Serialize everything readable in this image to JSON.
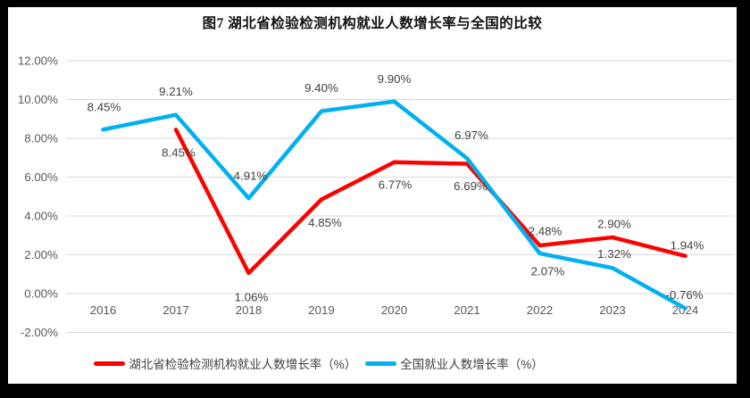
{
  "frame": {
    "border_color": "#000000",
    "panel_background": "#ffffff"
  },
  "chart_data": {
    "type": "line",
    "title": "图7 湖北省检验检测机构就业人数增长率与全国的比较",
    "categories": [
      "2016",
      "2017",
      "2018",
      "2019",
      "2020",
      "2021",
      "2022",
      "2023",
      "2024"
    ],
    "ytick_labels": [
      "12.00%",
      "10.00%",
      "8.00%",
      "6.00%",
      "4.00%",
      "2.00%",
      "0.00%",
      "-2.00%"
    ],
    "ylim": [
      -2,
      12
    ],
    "ytick_step": 2,
    "grid": true,
    "legend_position": "bottom",
    "gridline_color": "#d9d9d9",
    "axis_label_color": "#595959",
    "data_label_color": "#404040",
    "series": [
      {
        "name": "湖北省检验检测机构就业人数增长率（%）",
        "color": "#ff0000",
        "values": [
          null,
          8.45,
          1.06,
          4.85,
          6.77,
          6.69,
          2.48,
          2.9,
          1.94
        ],
        "data_labels": [
          "",
          "8.45%",
          "1.06%",
          "4.85%",
          "6.77%",
          "6.69%",
          "2.48%",
          "2.90%",
          "1.94%"
        ],
        "label_dx": [
          0,
          3,
          3,
          4,
          1,
          4,
          6,
          2,
          2
        ],
        "label_dy": [
          0,
          26,
          27,
          26,
          25,
          25,
          -16,
          -15,
          -12
        ]
      },
      {
        "name": "全国就业人数增长率（%）",
        "color": "#00b0f0",
        "values": [
          8.45,
          9.21,
          4.91,
          9.4,
          9.9,
          6.97,
          2.07,
          1.32,
          -0.76
        ],
        "data_labels": [
          "8.45%",
          "9.21%",
          "4.91%",
          "9.40%",
          "9.90%",
          "6.97%",
          "2.07%",
          "1.32%",
          "-0.76%"
        ],
        "label_dx": [
          1,
          0,
          2,
          0,
          0,
          5,
          9,
          2,
          -1
        ],
        "label_dy": [
          -25,
          -26,
          -25,
          -26,
          -25,
          -26,
          20,
          -16,
          -15
        ]
      }
    ]
  }
}
